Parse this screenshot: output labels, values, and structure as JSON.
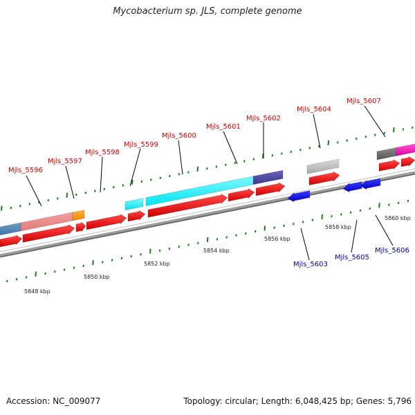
{
  "title": "Mycobacterium sp. JLS, complete genome",
  "accession": "Accession: NC_009077",
  "summary": "Topology: circular; Length: 6,048,425 bp; Genes: 5,796",
  "colors": {
    "forward_label": "#cc0000",
    "reverse_label": "#0000aa",
    "cds_forward": "#ee0000",
    "cds_reverse": "#0000dd",
    "backbone": "#8c8c8c",
    "ticks": "#1a7a1a"
  },
  "tick_labels": [
    "5848 kbp",
    "5850 kbp",
    "5852 kbp",
    "5854 kbp",
    "5856 kbp",
    "5858 kbp",
    "5860 kbp"
  ],
  "genes_forward": [
    "Mjls_5596",
    "Mjls_5597",
    "Mjls_5598",
    "Mjls_5599",
    "Mjls_5600",
    "Mjls_5601",
    "Mjls_5602",
    "Mjls_5604",
    "Mjls_5607"
  ],
  "genes_reverse": [
    "Mjls_5603",
    "Mjls_5605",
    "Mjls_5606"
  ]
}
